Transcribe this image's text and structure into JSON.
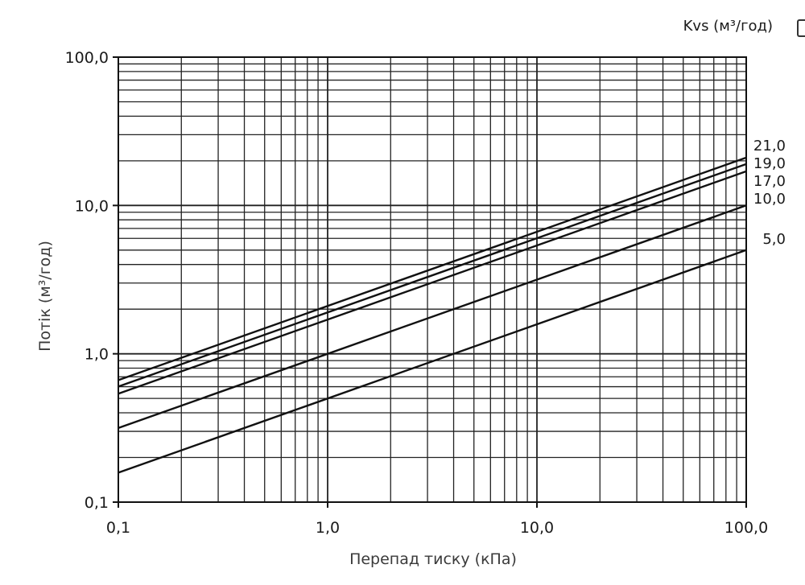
{
  "chart_data": {
    "type": "line",
    "x_scale": "log",
    "y_scale": "log",
    "xlim": [
      0.1,
      100.0
    ],
    "ylim": [
      0.1,
      100.0
    ],
    "grid": true,
    "xlabel": "Перепад тиску (кПа)",
    "ylabel": "Потік (м³/год)",
    "legend_title": "Kvs (м³/год)",
    "legend_placement": "right",
    "x_ticks": [
      0.1,
      1.0,
      10.0,
      100.0
    ],
    "x_tick_labels": [
      "0,1",
      "1,0",
      "10,0",
      "100,0"
    ],
    "y_ticks": [
      0.1,
      1.0,
      10.0,
      100.0
    ],
    "y_tick_labels": [
      "0,1",
      "1,0",
      "10,0",
      "100,0"
    ],
    "x": [
      0.1,
      100.0
    ],
    "series": [
      {
        "name": "21,0",
        "kvs": 21.0,
        "values": [
          0.664,
          21.0
        ]
      },
      {
        "name": "19,0",
        "kvs": 19.0,
        "values": [
          0.601,
          19.0
        ]
      },
      {
        "name": "17,0",
        "kvs": 17.0,
        "values": [
          0.538,
          17.0
        ]
      },
      {
        "name": "10,0",
        "kvs": 10.0,
        "values": [
          0.316,
          10.0
        ]
      },
      {
        "name": "5,0",
        "kvs": 5.0,
        "values": [
          0.158,
          5.0
        ]
      }
    ],
    "colors": {
      "line": "#111111",
      "grid": "#222222"
    }
  }
}
